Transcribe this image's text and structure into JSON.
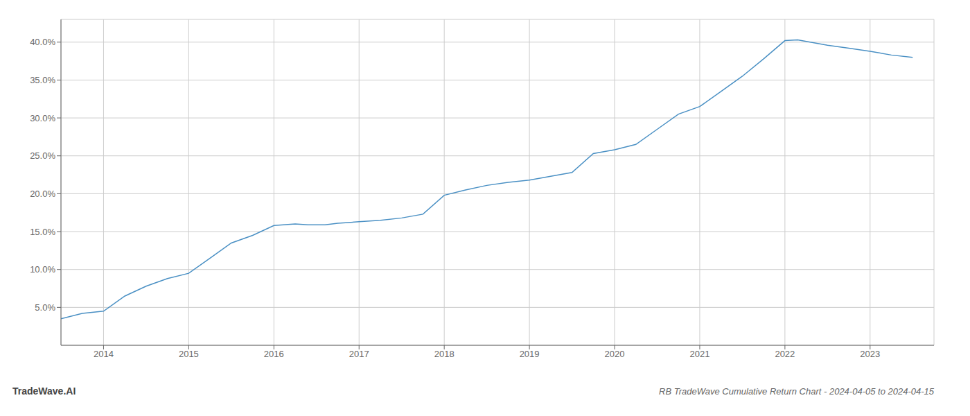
{
  "chart_data": {
    "type": "line",
    "title": "RB TradeWave Cumulative Return Chart - 2024-04-05 to 2024-04-15",
    "annotations": [
      "TradeWave.AI"
    ],
    "x": [
      2013.5,
      2013.75,
      2014.0,
      2014.25,
      2014.5,
      2014.75,
      2015.0,
      2015.25,
      2015.5,
      2015.75,
      2016.0,
      2016.25,
      2016.4,
      2016.6,
      2016.75,
      2017.0,
      2017.25,
      2017.5,
      2017.75,
      2018.0,
      2018.25,
      2018.5,
      2018.75,
      2019.0,
      2019.25,
      2019.5,
      2019.75,
      2020.0,
      2020.25,
      2020.5,
      2020.75,
      2021.0,
      2021.25,
      2021.5,
      2021.75,
      2022.0,
      2022.15,
      2022.5,
      2022.75,
      2023.0,
      2023.25,
      2023.5
    ],
    "values": [
      3.5,
      4.2,
      4.5,
      6.5,
      7.8,
      8.8,
      9.5,
      11.5,
      13.5,
      14.5,
      15.8,
      16.0,
      15.9,
      15.9,
      16.1,
      16.3,
      16.5,
      16.8,
      17.3,
      19.8,
      20.5,
      21.1,
      21.5,
      21.8,
      22.3,
      22.8,
      25.3,
      25.8,
      26.5,
      28.5,
      30.5,
      31.5,
      33.5,
      35.5,
      37.8,
      40.2,
      40.3,
      39.6,
      39.2,
      38.8,
      38.3,
      38.0
    ],
    "color": "#4a90c4",
    "xlim": [
      2013.5,
      2023.75
    ],
    "ylim": [
      0,
      43
    ],
    "xticks": [
      2014,
      2015,
      2016,
      2017,
      2018,
      2019,
      2020,
      2021,
      2022,
      2023
    ],
    "yticks": [
      {
        "value": 5.0,
        "label": "5.0%"
      },
      {
        "value": 10.0,
        "label": "10.0%"
      },
      {
        "value": 15.0,
        "label": "15.0%"
      },
      {
        "value": 20.0,
        "label": "20.0%"
      },
      {
        "value": 25.0,
        "label": "25.0%"
      },
      {
        "value": 30.0,
        "label": "30.0%"
      },
      {
        "value": 35.0,
        "label": "35.0%"
      },
      {
        "value": 40.0,
        "label": "40.0%"
      }
    ],
    "grid": true
  }
}
